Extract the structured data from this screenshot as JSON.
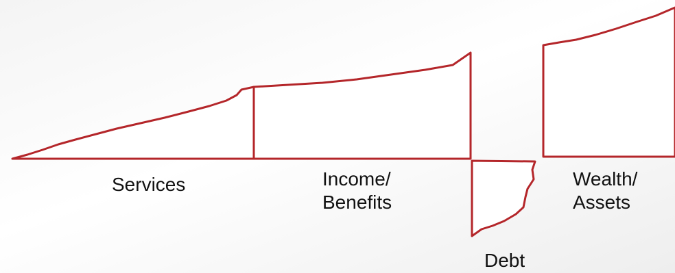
{
  "labels": {
    "services": "Services",
    "income": "Income/\nBenefits",
    "debt": "Debt",
    "wealth": "Wealth/\nAssets"
  },
  "colors": {
    "outline": "#b4262a",
    "fill": "#ffffff",
    "text": "#111111"
  }
}
